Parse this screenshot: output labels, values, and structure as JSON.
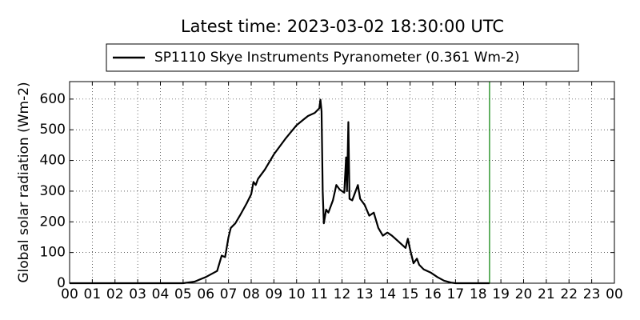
{
  "chart_data": {
    "type": "line",
    "title": "Latest time: 2023-03-02 18:30:00 UTC",
    "y_label": "Global solar radiation (Wm-2)",
    "x": [
      0,
      5.0,
      5.5,
      6.0,
      6.5,
      6.7,
      6.85,
      7.0,
      7.1,
      7.3,
      7.5,
      7.8,
      8.0,
      8.1,
      8.2,
      8.3,
      8.6,
      9.0,
      9.5,
      10.0,
      10.5,
      10.8,
      11.0,
      11.05,
      11.1,
      11.15,
      11.2,
      11.3,
      11.4,
      11.6,
      11.75,
      11.9,
      12.1,
      12.18,
      12.22,
      12.28,
      12.33,
      12.45,
      12.6,
      12.7,
      12.8,
      13.0,
      13.2,
      13.4,
      13.6,
      13.8,
      14.0,
      14.2,
      14.5,
      14.8,
      14.9,
      15.0,
      15.15,
      15.3,
      15.4,
      15.6,
      15.9,
      16.2,
      16.5,
      16.8,
      17.0,
      18.5
    ],
    "series": [
      {
        "name": "SP1110 Skye Instruments Pyranometer (0.361 Wm-2)",
        "color": "#000000",
        "values": [
          0,
          0,
          5,
          20,
          40,
          90,
          85,
          150,
          180,
          195,
          220,
          260,
          290,
          330,
          320,
          340,
          370,
          420,
          470,
          515,
          545,
          555,
          570,
          598,
          560,
          300,
          195,
          240,
          230,
          270,
          320,
          305,
          295,
          410,
          300,
          525,
          275,
          270,
          300,
          320,
          275,
          255,
          220,
          230,
          180,
          155,
          165,
          155,
          135,
          115,
          145,
          110,
          65,
          80,
          60,
          45,
          35,
          20,
          8,
          2,
          0,
          0
        ]
      }
    ],
    "vline": {
      "x": 18.5,
      "color": "#008000"
    },
    "xlim": [
      0,
      24
    ],
    "xticks": [
      {
        "value": 0,
        "label": "00"
      },
      {
        "value": 1,
        "label": "01"
      },
      {
        "value": 2,
        "label": "02"
      },
      {
        "value": 3,
        "label": "03"
      },
      {
        "value": 4,
        "label": "04"
      },
      {
        "value": 5,
        "label": "05"
      },
      {
        "value": 6,
        "label": "06"
      },
      {
        "value": 7,
        "label": "07"
      },
      {
        "value": 8,
        "label": "08"
      },
      {
        "value": 9,
        "label": "09"
      },
      {
        "value": 10,
        "label": "10"
      },
      {
        "value": 11,
        "label": "11"
      },
      {
        "value": 12,
        "label": "12"
      },
      {
        "value": 13,
        "label": "13"
      },
      {
        "value": 14,
        "label": "14"
      },
      {
        "value": 15,
        "label": "15"
      },
      {
        "value": 16,
        "label": "16"
      },
      {
        "value": 17,
        "label": "17"
      },
      {
        "value": 18,
        "label": "18"
      },
      {
        "value": 19,
        "label": "19"
      },
      {
        "value": 20,
        "label": "20"
      },
      {
        "value": 21,
        "label": "21"
      },
      {
        "value": 22,
        "label": "22"
      },
      {
        "value": 23,
        "label": "23"
      },
      {
        "value": 24,
        "label": "00"
      }
    ],
    "ylim": [
      0,
      657
    ],
    "yticks": [
      0,
      100,
      200,
      300,
      400,
      500,
      600
    ],
    "grid": true
  }
}
